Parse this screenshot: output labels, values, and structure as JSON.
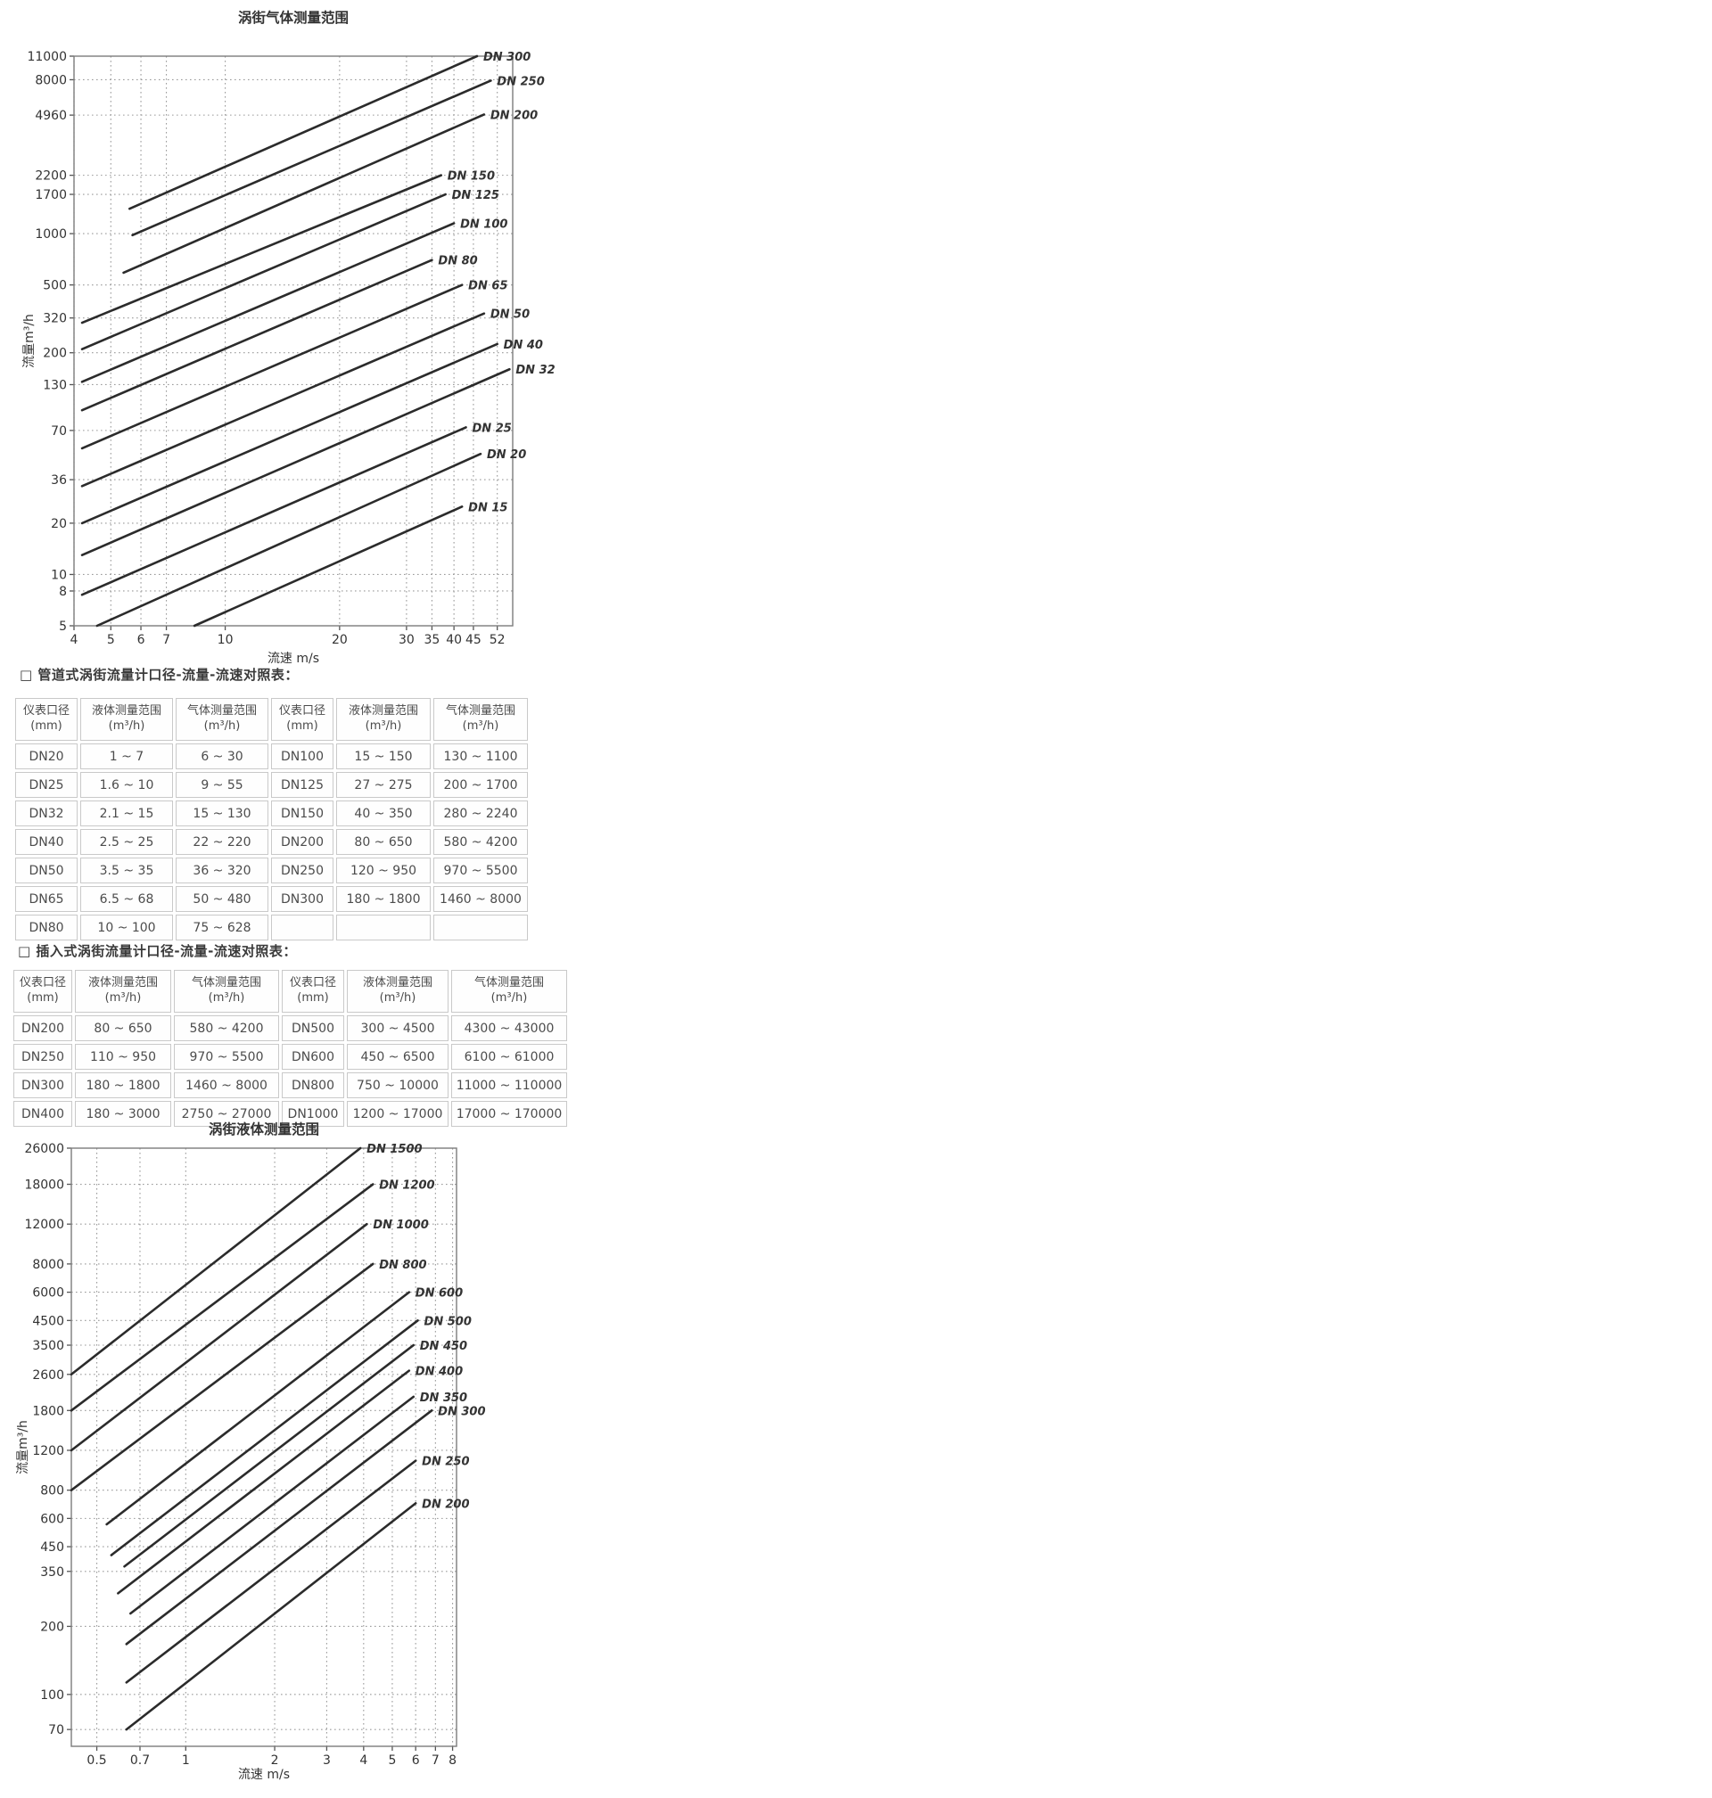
{
  "tables": {
    "pipe": {
      "heading": "□ 管道式涡街流量计口径-流量-流速对照表：",
      "headers": [
        {
          "top": "仪表口径",
          "bottom": "(mm)"
        },
        {
          "top": "液体测量范围",
          "bottom": "(m³/h)"
        },
        {
          "top": "气体测量范围",
          "bottom": "(m³/h)"
        },
        {
          "top": "仪表口径",
          "bottom": "(mm)"
        },
        {
          "top": "液体测量范围",
          "bottom": "(m³/h)"
        },
        {
          "top": "气体测量范围",
          "bottom": "(m³/h)"
        }
      ],
      "rows": [
        [
          "DN20",
          "1 ~ 7",
          "6 ~ 30",
          "DN100",
          "15 ~ 150",
          "130 ~ 1100"
        ],
        [
          "DN25",
          "1.6 ~ 10",
          "9 ~ 55",
          "DN125",
          "27 ~ 275",
          "200 ~ 1700"
        ],
        [
          "DN32",
          "2.1 ~ 15",
          "15 ~ 130",
          "DN150",
          "40 ~ 350",
          "280 ~ 2240"
        ],
        [
          "DN40",
          "2.5 ~ 25",
          "22 ~ 220",
          "DN200",
          "80 ~ 650",
          "580 ~ 4200"
        ],
        [
          "DN50",
          "3.5 ~ 35",
          "36 ~ 320",
          "DN250",
          "120 ~ 950",
          "970 ~ 5500"
        ],
        [
          "DN65",
          "6.5 ~ 68",
          "50 ~ 480",
          "DN300",
          "180 ~ 1800",
          "1460 ~ 8000"
        ],
        [
          "DN80",
          "10 ~ 100",
          "75 ~ 628",
          "",
          "",
          ""
        ]
      ]
    },
    "insertion": {
      "heading": "□ 插入式涡街流量计口径-流量-流速对照表：",
      "headers": [
        {
          "top": "仪表口径",
          "bottom": "(mm)"
        },
        {
          "top": "液体测量范围",
          "bottom": "(m³/h)"
        },
        {
          "top": "气体测量范围",
          "bottom": "(m³/h)"
        },
        {
          "top": "仪表口径",
          "bottom": "(mm)"
        },
        {
          "top": "液体测量范围",
          "bottom": "(m³/h)"
        },
        {
          "top": "气体测量范围",
          "bottom": "(m³/h)"
        }
      ],
      "rows": [
        [
          "DN200",
          "80 ~ 650",
          "580 ~ 4200",
          "DN500",
          "300 ~ 4500",
          "4300 ~ 43000"
        ],
        [
          "DN250",
          "110 ~ 950",
          "970 ~ 5500",
          "DN600",
          "450 ~ 6500",
          "6100 ~ 61000"
        ],
        [
          "DN300",
          "180 ~ 1800",
          "1460 ~ 8000",
          "DN800",
          "750 ~ 10000",
          "11000 ~ 110000"
        ],
        [
          "DN400",
          "180 ~ 3000",
          "2750 ~ 27000",
          "DN1000",
          "1200 ~ 17000",
          "17000 ~ 170000"
        ]
      ]
    }
  },
  "chart_data": [
    {
      "type": "line",
      "scale": "log-log",
      "title": "涡街气体测量范围",
      "xlabel": "流速 m/s",
      "ylabel": "流量m³/h",
      "xlim": [
        4,
        57.1
      ],
      "ylim": [
        5,
        11000
      ],
      "x_ticks": [
        4,
        5,
        6,
        7,
        10,
        20,
        30,
        35,
        40,
        45,
        52
      ],
      "y_ticks": [
        11000,
        8000,
        4960,
        2200,
        1700,
        1000,
        500,
        320,
        200,
        130,
        70,
        36,
        20,
        10,
        8,
        5
      ],
      "grid": "dotted",
      "series": [
        {
          "name": "DN 300",
          "points": [
            [
              5.6,
              1400
            ],
            [
              46,
              11000
            ]
          ]
        },
        {
          "name": "DN 250",
          "points": [
            [
              5.7,
              980
            ],
            [
              50,
              7900
            ]
          ]
        },
        {
          "name": "DN 200",
          "points": [
            [
              5.4,
              590
            ],
            [
              48,
              5000
            ]
          ]
        },
        {
          "name": "DN 150",
          "points": [
            [
              4.2,
              300
            ],
            [
              37,
              2200
            ]
          ]
        },
        {
          "name": "DN 125",
          "points": [
            [
              4.2,
              210
            ],
            [
              38,
              1700
            ]
          ]
        },
        {
          "name": "DN 100",
          "points": [
            [
              4.2,
              135
            ],
            [
              40,
              1150
            ]
          ]
        },
        {
          "name": "DN 80",
          "points": [
            [
              4.2,
              92
            ],
            [
              35,
              700
            ]
          ]
        },
        {
          "name": "DN 65",
          "points": [
            [
              4.2,
              55
            ],
            [
              42,
              500
            ]
          ]
        },
        {
          "name": "DN 50",
          "points": [
            [
              4.2,
              33
            ],
            [
              48,
              340
            ]
          ]
        },
        {
          "name": "DN 40",
          "points": [
            [
              4.2,
              20
            ],
            [
              52,
              225
            ]
          ]
        },
        {
          "name": "DN 32",
          "points": [
            [
              4.2,
              13
            ],
            [
              56,
              160
            ]
          ]
        },
        {
          "name": "DN 25",
          "points": [
            [
              4.2,
              7.6
            ],
            [
              43,
              73
            ]
          ]
        },
        {
          "name": "DN 20",
          "points": [
            [
              4.6,
              5
            ],
            [
              47,
              51
            ]
          ]
        },
        {
          "name": "DN 15",
          "points": [
            [
              8.3,
              5
            ],
            [
              42,
              25
            ]
          ]
        }
      ]
    },
    {
      "type": "line",
      "scale": "log-log",
      "title": "涡街液体测量范围",
      "xlabel": "流速 m/s",
      "ylabel": "流量m³/h",
      "xlim": [
        0.41,
        8.25
      ],
      "ylim": [
        59,
        26000
      ],
      "x_ticks": [
        0.5,
        0.7,
        1,
        2,
        3,
        4,
        5,
        6,
        7,
        8
      ],
      "y_ticks": [
        26000,
        18000,
        12000,
        8000,
        6000,
        4500,
        3500,
        2600,
        1800,
        1200,
        800,
        600,
        450,
        350,
        200,
        100,
        70
      ],
      "grid": "dotted",
      "series": [
        {
          "name": "DN 1500",
          "points": [
            [
              0.41,
              2600
            ],
            [
              3.9,
              26000
            ]
          ]
        },
        {
          "name": "DN 1200",
          "points": [
            [
              0.41,
              1800
            ],
            [
              4.3,
              18000
            ]
          ]
        },
        {
          "name": "DN 1000",
          "points": [
            [
              0.41,
              1200
            ],
            [
              4.1,
              12000
            ]
          ]
        },
        {
          "name": "DN 800",
          "points": [
            [
              0.41,
              800
            ],
            [
              4.3,
              8000
            ]
          ]
        },
        {
          "name": "DN 600",
          "points": [
            [
              0.54,
              565
            ],
            [
              5.7,
              6000
            ]
          ]
        },
        {
          "name": "DN 500",
          "points": [
            [
              0.56,
              413
            ],
            [
              6.1,
              4500
            ]
          ]
        },
        {
          "name": "DN 450",
          "points": [
            [
              0.62,
              368
            ],
            [
              5.9,
              3500
            ]
          ]
        },
        {
          "name": "DN 400",
          "points": [
            [
              0.59,
              280
            ],
            [
              5.7,
              2700
            ]
          ]
        },
        {
          "name": "DN 350",
          "points": [
            [
              0.65,
              228
            ],
            [
              5.9,
              2070
            ]
          ]
        },
        {
          "name": "DN 300",
          "points": [
            [
              0.63,
              167
            ],
            [
              6.8,
              1800
            ]
          ]
        },
        {
          "name": "DN 250",
          "points": [
            [
              0.63,
              113
            ],
            [
              6.0,
              1080
            ]
          ]
        },
        {
          "name": "DN 200",
          "points": [
            [
              0.63,
              70
            ],
            [
              6.0,
              700
            ]
          ]
        }
      ]
    }
  ]
}
